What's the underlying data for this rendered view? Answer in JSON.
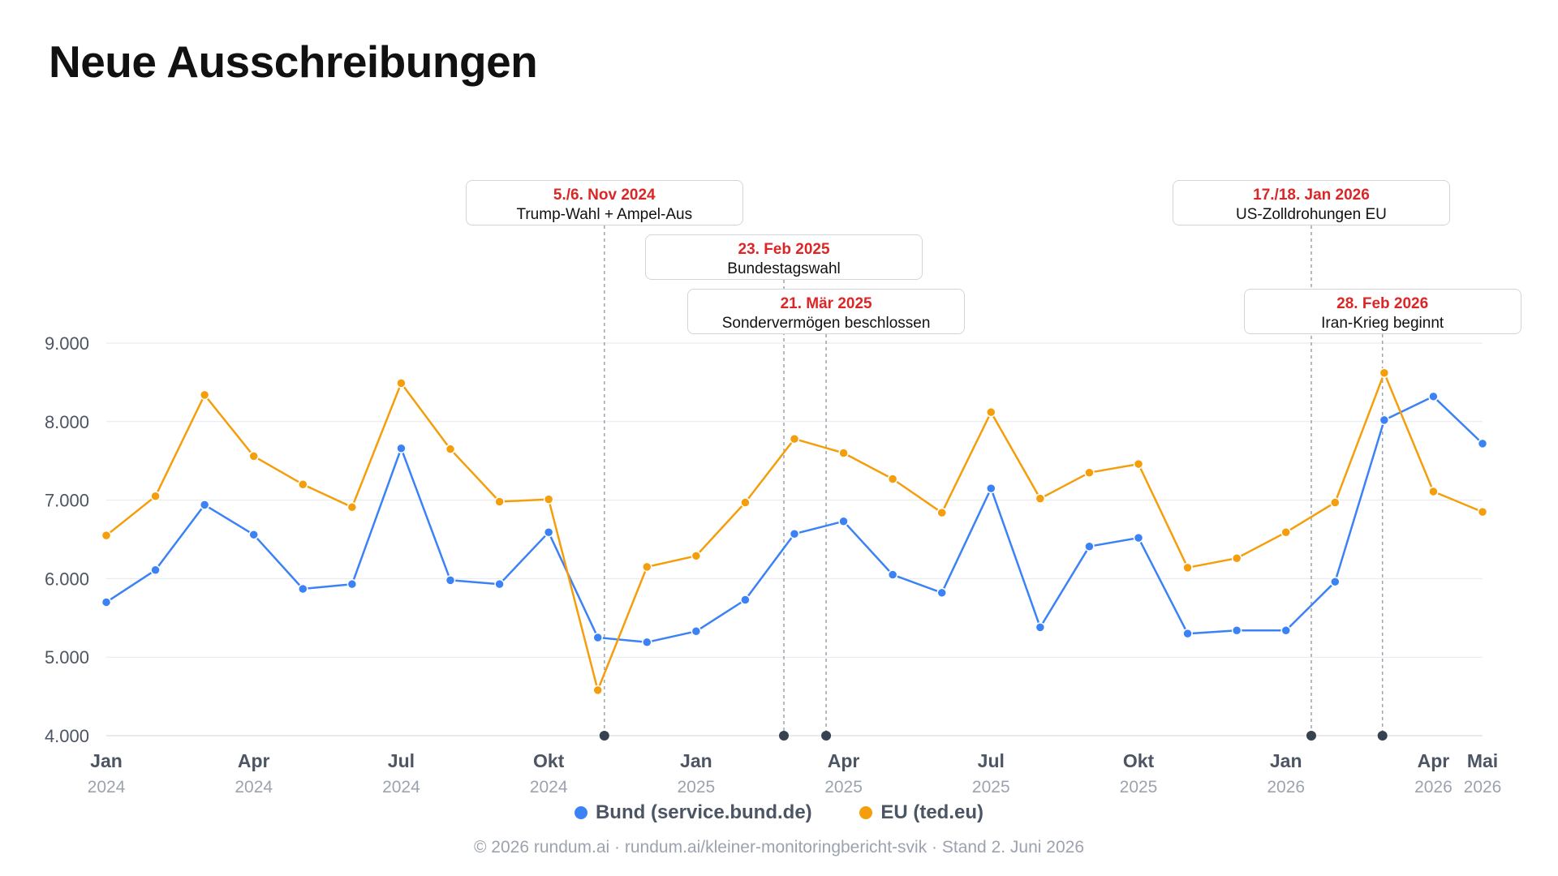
{
  "title": "Neue Ausschreibungen",
  "colors": {
    "bund": "#3b82f6",
    "eu": "#f59e0b",
    "annotation_date": "#dc2626",
    "event_marker": "#374151",
    "grid": "#e5e7eb"
  },
  "legend": [
    {
      "label": "Bund (service.bund.de)",
      "color": "#3b82f6"
    },
    {
      "label": "EU (ted.eu)",
      "color": "#f59e0b"
    }
  ],
  "footer": "© 2026 rundum.ai · rundum.ai/kleiner-monitoringbericht-svik · Stand 2. Juni 2026",
  "chart_data": {
    "type": "line",
    "x": [
      "2024-01",
      "2024-02",
      "2024-03",
      "2024-04",
      "2024-05",
      "2024-06",
      "2024-07",
      "2024-08",
      "2024-09",
      "2024-10",
      "2024-11",
      "2024-12",
      "2025-01",
      "2025-02",
      "2025-03",
      "2025-04",
      "2025-05",
      "2025-06",
      "2025-07",
      "2025-08",
      "2025-09",
      "2025-10",
      "2025-11",
      "2025-12",
      "2026-01",
      "2026-02",
      "2026-03",
      "2026-04",
      "2026-05"
    ],
    "ylim": [
      4000,
      9000
    ],
    "yticks": [
      "4.000",
      "5.000",
      "6.000",
      "7.000",
      "8.000",
      "9.000"
    ],
    "ytick_values": [
      4000,
      5000,
      6000,
      7000,
      8000,
      9000
    ],
    "xticks": [
      {
        "month": "Jan",
        "year": "2024",
        "date": "2024-01"
      },
      {
        "month": "Apr",
        "year": "2024",
        "date": "2024-04"
      },
      {
        "month": "Jul",
        "year": "2024",
        "date": "2024-07"
      },
      {
        "month": "Okt",
        "year": "2024",
        "date": "2024-10"
      },
      {
        "month": "Jan",
        "year": "2025",
        "date": "2025-01"
      },
      {
        "month": "Apr",
        "year": "2025",
        "date": "2025-04"
      },
      {
        "month": "Jul",
        "year": "2025",
        "date": "2025-07"
      },
      {
        "month": "Okt",
        "year": "2025",
        "date": "2025-10"
      },
      {
        "month": "Jan",
        "year": "2026",
        "date": "2026-01"
      },
      {
        "month": "Apr",
        "year": "2026",
        "date": "2026-04"
      },
      {
        "month": "Mai",
        "year": "2026",
        "date": "2026-05"
      }
    ],
    "grid": true,
    "legend_position": "bottom-center",
    "series": [
      {
        "name": "Bund (service.bund.de)",
        "color": "#3b82f6",
        "values": [
          5700,
          6110,
          6940,
          6560,
          5870,
          5930,
          7660,
          5980,
          5930,
          6590,
          5250,
          5190,
          5330,
          5730,
          6570,
          6730,
          6050,
          5820,
          7150,
          5380,
          6410,
          6520,
          5300,
          5340,
          5340,
          5960,
          8020,
          8320,
          7720
        ]
      },
      {
        "name": "EU (ted.eu)",
        "color": "#f59e0b",
        "values": [
          6550,
          7050,
          8340,
          7560,
          7200,
          6910,
          8490,
          7650,
          6980,
          7010,
          4580,
          6150,
          6290,
          6970,
          7780,
          7600,
          7270,
          6840,
          8120,
          7020,
          7350,
          7460,
          6140,
          6260,
          6590,
          6970,
          8620,
          7110,
          6850
        ]
      }
    ],
    "annotations": [
      {
        "date_label": "5./6. Nov 2024",
        "label": "Trump-Wahl + Ampel-Aus",
        "date": "2024-11-05",
        "box_row": 1
      },
      {
        "date_label": "23. Feb 2025",
        "label": "Bundestagswahl",
        "date": "2025-02-23",
        "box_row": 2
      },
      {
        "date_label": "21. Mär 2025",
        "label": "Sondervermögen beschlossen",
        "date": "2025-03-21",
        "box_row": 3
      },
      {
        "date_label": "17./18. Jan 2026",
        "label": "US-Zolldrohungen EU",
        "date": "2026-01-17",
        "box_row": 1
      },
      {
        "date_label": "28. Feb 2026",
        "label": "Iran-Krieg beginnt",
        "date": "2026-02-28",
        "box_row": 3
      }
    ]
  }
}
